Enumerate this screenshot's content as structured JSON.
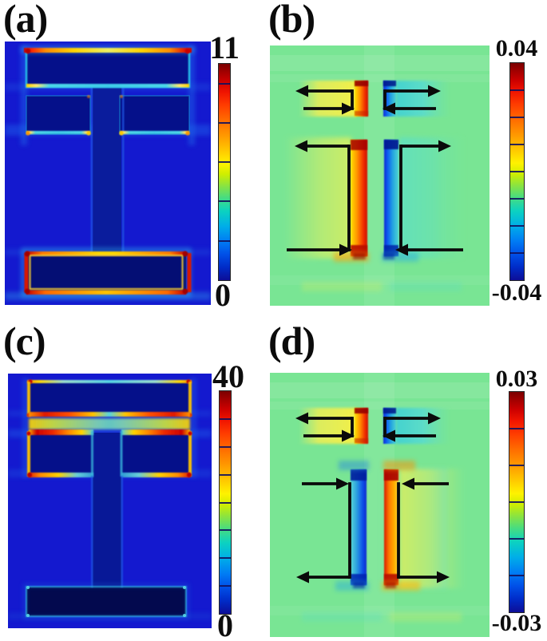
{
  "figure": {
    "kind": "four-panel simulation figure",
    "grid": "2x2",
    "background": "#ffffff",
    "palette": {
      "background_blue": "#1a18d6",
      "structure_navy": "#050e85",
      "background_green": "#79e594",
      "arrow_black": "#0a0a0a",
      "jet_stops": [
        "#7a0000",
        "#cc0000",
        "#ff3c00",
        "#ff9800",
        "#fff200",
        "#8fe43c",
        "#0cd2c0",
        "#00aee8",
        "#0050e8",
        "#0d0d96"
      ]
    }
  },
  "chart_data": [
    {
      "panel": "a",
      "label": "(a)",
      "type": "heatmap",
      "colormap": "jet",
      "colorbar": {
        "max": 11,
        "min": 0,
        "max_label": "11",
        "min_label": "0",
        "tick_values": [
          10,
          8,
          6,
          4,
          2
        ]
      },
      "content": "Field-magnitude map of a dark I-beam-like metamaterial structure on a blue background",
      "features": [
        "bright red/orange/yellow rim along the top edge of the upper wide bar",
        "cyan rims with yellow corner hotspots on the two middle bars",
        "full bright red ring with yellow inner ring around the bottom wide bar",
        "faint cyan glow along the central vertical stem"
      ]
    },
    {
      "panel": "b",
      "label": "(b)",
      "type": "heatmap",
      "colormap": "jet",
      "colorbar": {
        "max": 0.04,
        "min": -0.04,
        "max_label": "0.04",
        "min_label": "-0.04",
        "tick_values": [
          0.03,
          0.02,
          0.01,
          0,
          -0.01,
          -0.02,
          -0.03
        ]
      },
      "content": "Charge/current-density map on a light-green background with black flow arrows",
      "regions": {
        "upper_left_strip": "positive (yellow to red)",
        "upper_right_strip": "negative (dark blue to cyan)",
        "stem_left_strip": "positive (yellow to red, hotspots at both ends)",
        "stem_right_strip": "negative (dark blue to cyan, hotspots at both ends)"
      },
      "annotations": {
        "arrows": [
          "upper-left loop: long arrow pointing left above a short arrow pointing right, joined on the right",
          "upper-right loop: long arrow pointing right above a short arrow pointing left, joined on the left",
          "left tall C-bracket: top arm arrow points left (outward), bottom arm arrow points right (inward)",
          "right tall C-bracket: top arm arrow points right (outward), bottom arm arrow points left (inward)"
        ]
      }
    },
    {
      "panel": "c",
      "label": "(c)",
      "type": "heatmap",
      "colormap": "jet",
      "colorbar": {
        "max": 40,
        "min": 0,
        "max_label": "40",
        "min_label": "0",
        "tick_values": [
          35,
          30,
          25,
          20,
          15,
          10,
          5
        ]
      },
      "content": "Field-magnitude map of the same structure at a different resonance",
      "features": [
        "strongest enhancement (dark red/orange strips) in the horizontal gap between the upper bar and the middle bars",
        "bright yellow outer vertical edges and red corner hotspots on the upper structure",
        "only a faint cyan outline around the bottom wide bar",
        "faint cyan glow along the central stem"
      ]
    },
    {
      "panel": "d",
      "label": "(d)",
      "type": "heatmap",
      "colormap": "jet",
      "colorbar": {
        "max": 0.03,
        "min": -0.03,
        "max_label": "0.03",
        "min_label": "-0.03",
        "tick_values": [
          0.02,
          0.01,
          0,
          -0.01,
          -0.02
        ]
      },
      "content": "Charge/current-density map with black flow arrows; stem polarity reversed relative to panel (b)",
      "regions": {
        "upper_left_strip": "positive (yellow to red)",
        "upper_right_strip": "negative (dark blue to cyan)",
        "stem_left_strip": "negative (cyan to blue, hotspots at both ends)",
        "stem_right_strip": "positive (orange to red, hotspots at both ends)"
      },
      "annotations": {
        "arrows": [
          "upper-left loop: same as panel (b)",
          "upper-right loop: same as panel (b)",
          "left tall C-bracket: top arm arrow points right (inward), bottom arm arrow points left (outward)",
          "right tall C-bracket: top arm arrow points left (inward), bottom arm arrow points right (outward)"
        ]
      }
    }
  ]
}
